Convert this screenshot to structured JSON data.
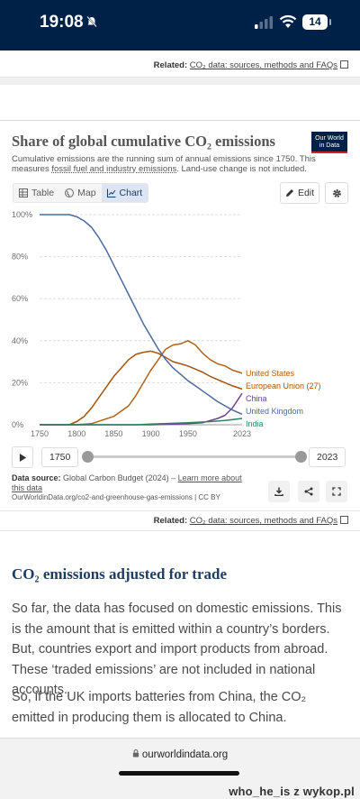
{
  "status_bar": {
    "time": "19:08",
    "battery": "14"
  },
  "related_top": {
    "label": "Related:",
    "link": "CO₂ data: sources, methods and FAQs"
  },
  "card": {
    "title": "Share of global cumulative CO₂ emissions",
    "logo_line1": "Our World",
    "logo_line2": "in Data",
    "subtitle_a": "Cumulative emissions are the running sum of annual emissions since 1750. This measures ",
    "subtitle_link": "fossil fuel and industry emissions",
    "subtitle_b": ". Land-use change is not included.",
    "tabs": {
      "table": "Table",
      "map": "Map",
      "chart": "Chart"
    },
    "edit": "Edit"
  },
  "chart_data": {
    "type": "line",
    "x_ticks": [
      "1750",
      "1800",
      "1850",
      "1900",
      "1950",
      "2023"
    ],
    "y_ticks": [
      "0%",
      "20%",
      "40%",
      "60%",
      "80%",
      "100%"
    ],
    "xlim": [
      1750,
      2023
    ],
    "ylim": [
      0,
      100
    ],
    "grid": true,
    "series": [
      {
        "name": "United States",
        "color": "#b16214",
        "points": [
          [
            1750,
            0
          ],
          [
            1800,
            0
          ],
          [
            1820,
            0.5
          ],
          [
            1850,
            4
          ],
          [
            1870,
            9
          ],
          [
            1880,
            14
          ],
          [
            1890,
            20
          ],
          [
            1900,
            26
          ],
          [
            1910,
            31
          ],
          [
            1920,
            36
          ],
          [
            1930,
            38
          ],
          [
            1940,
            38.5
          ],
          [
            1950,
            40
          ],
          [
            1960,
            38
          ],
          [
            1970,
            34
          ],
          [
            1980,
            31
          ],
          [
            1990,
            29
          ],
          [
            2000,
            28
          ],
          [
            2010,
            26
          ],
          [
            2023,
            24.5
          ]
        ]
      },
      {
        "name": "European Union (27)",
        "color": "#a2540a",
        "points": [
          [
            1750,
            0
          ],
          [
            1790,
            0
          ],
          [
            1800,
            1.5
          ],
          [
            1810,
            4
          ],
          [
            1820,
            8
          ],
          [
            1830,
            13
          ],
          [
            1840,
            18
          ],
          [
            1850,
            23
          ],
          [
            1860,
            27
          ],
          [
            1870,
            31
          ],
          [
            1880,
            33.5
          ],
          [
            1890,
            34.5
          ],
          [
            1900,
            35
          ],
          [
            1910,
            34
          ],
          [
            1920,
            32
          ],
          [
            1930,
            30
          ],
          [
            1940,
            29
          ],
          [
            1950,
            28
          ],
          [
            1960,
            26.5
          ],
          [
            1970,
            25
          ],
          [
            1980,
            23
          ],
          [
            1990,
            21.5
          ],
          [
            2000,
            20
          ],
          [
            2010,
            18.5
          ],
          [
            2023,
            17
          ]
        ]
      },
      {
        "name": "China",
        "color": "#6d3e91",
        "points": [
          [
            1750,
            0
          ],
          [
            1900,
            0
          ],
          [
            1950,
            0.5
          ],
          [
            1970,
            1
          ],
          [
            1980,
            2
          ],
          [
            1990,
            3
          ],
          [
            2000,
            4.5
          ],
          [
            2010,
            8
          ],
          [
            2023,
            15
          ]
        ]
      },
      {
        "name": "United Kingdom",
        "color": "#4c6a9c",
        "points": [
          [
            1750,
            100
          ],
          [
            1790,
            100
          ],
          [
            1800,
            99
          ],
          [
            1810,
            97
          ],
          [
            1820,
            94
          ],
          [
            1830,
            89
          ],
          [
            1840,
            83
          ],
          [
            1850,
            76
          ],
          [
            1860,
            69
          ],
          [
            1870,
            62
          ],
          [
            1880,
            55
          ],
          [
            1890,
            48
          ],
          [
            1900,
            42
          ],
          [
            1910,
            36
          ],
          [
            1920,
            31
          ],
          [
            1930,
            27
          ],
          [
            1940,
            24
          ],
          [
            1950,
            21
          ],
          [
            1960,
            18.5
          ],
          [
            1970,
            16
          ],
          [
            1980,
            13.5
          ],
          [
            1990,
            11
          ],
          [
            2000,
            9
          ],
          [
            2010,
            7
          ],
          [
            2023,
            5
          ]
        ]
      },
      {
        "name": "India",
        "color": "#2c8465",
        "points": [
          [
            1750,
            0
          ],
          [
            1880,
            0
          ],
          [
            1900,
            0.3
          ],
          [
            1950,
            1
          ],
          [
            1980,
            1.5
          ],
          [
            2000,
            2
          ],
          [
            2023,
            3
          ]
        ]
      }
    ]
  },
  "timeline": {
    "start": "1750",
    "end": "2023"
  },
  "source": {
    "label": "Data source:",
    "text": "Global Carbon Budget (2024) – ",
    "link": "Learn more about this data",
    "url": "OurWorldinData.org/co2-and-greenhouse-gas-emissions | CC BY"
  },
  "related_bottom": {
    "label": "Related:",
    "link": "CO₂ data: sources, methods and FAQs"
  },
  "article": {
    "heading": "CO₂ emissions adjusted for trade",
    "p1": "So far, the data has focused on domestic emissions. This is the amount that is emitted within a country’s borders. But, countries export and import products from abroad. These ‘traded emissions’ are not included in national accounts.",
    "p2": "So, if the UK imports batteries from China, the CO₂ emitted in producing them is allocated to China."
  },
  "browser": {
    "url": "ourworldindata.org"
  },
  "watermark": "who_he_is z wykop.pl"
}
